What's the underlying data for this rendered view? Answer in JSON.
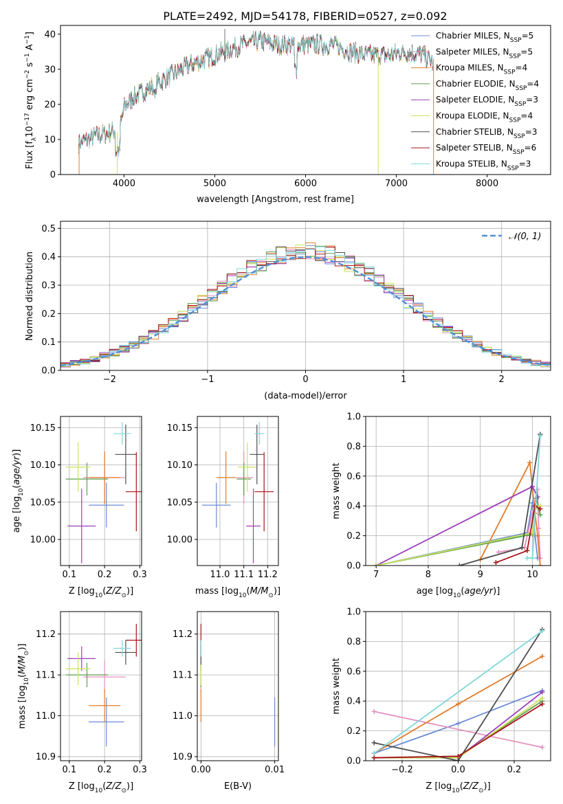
{
  "figure": {
    "title": "PLATE=2492, MJD=54178, FIBERID=0527, z=0.092"
  },
  "colors": {
    "Chabrier MILES": "#6a8ad6",
    "Salpeter MILES": "#e58fbf",
    "Kroupa MILES": "#e07b2a",
    "Chabrier ELODIE": "#5c9e4e",
    "Salpeter ELODIE": "#9b3db8",
    "Kroupa ELODIE": "#c9e35a",
    "Chabrier STELIB": "#4d4d4d",
    "Salpeter STELIB": "#a8121a",
    "Kroupa STELIB": "#7fd6da"
  },
  "chart_data": [
    {
      "id": "spectrum",
      "type": "line",
      "xlabel_main": "wavelength [Angstrom, rest frame]",
      "ylabel_main": "Flux [f",
      "xlim": [
        3300,
        8700
      ],
      "ylim": [
        0,
        42.5
      ],
      "xticks": [
        4000,
        5000,
        6000,
        7000,
        8000
      ],
      "yticks": [
        0,
        10,
        20,
        30,
        40
      ],
      "grid": false,
      "legend_position": "top-right",
      "legend": [
        {
          "model": "Chabrier MILES",
          "nssp": "5"
        },
        {
          "model": "Salpeter MILES",
          "nssp": "5"
        },
        {
          "model": "Kroupa MILES",
          "nssp": "4"
        },
        {
          "model": "Chabrier ELODIE",
          "nssp": "4"
        },
        {
          "model": "Salpeter ELODIE",
          "nssp": "3"
        },
        {
          "model": "Kroupa ELODIE",
          "nssp": "4"
        },
        {
          "model": "Chabrier STELIB",
          "nssp": "3"
        },
        {
          "model": "Salpeter STELIB",
          "nssp": "6"
        },
        {
          "model": "Kroupa STELIB",
          "nssp": "3"
        }
      ],
      "continuum": {
        "x": [
          3500,
          3700,
          3850,
          3950,
          4000,
          4100,
          4300,
          4500,
          4700,
          4900,
          5100,
          5300,
          5500,
          5700,
          5900,
          6100,
          6300,
          6500,
          6700,
          6900,
          7100,
          7300,
          7400
        ],
        "y": [
          9,
          11,
          12,
          13,
          19,
          22,
          25,
          28,
          31,
          33,
          35,
          37,
          38,
          37,
          37,
          37,
          37,
          35,
          34,
          34,
          35,
          34,
          32
        ]
      }
    },
    {
      "id": "residuals",
      "type": "step",
      "xlabel": "(data-model)/error",
      "ylabel": "Normed distribution",
      "xlim": [
        -2.5,
        2.5
      ],
      "ylim": [
        0,
        0.525
      ],
      "xticks": [
        -2,
        -1,
        0,
        1,
        2
      ],
      "yticks": [
        0.0,
        0.1,
        0.2,
        0.3,
        0.4,
        0.5
      ],
      "grid": true,
      "legend_position": "top-right",
      "reference_curve": "N(0,1)",
      "bin_width": 0.1
    },
    {
      "id": "age-vs-Z",
      "type": "errorbar",
      "xlabel": "Z [log10(Z/Z⊙)]",
      "ylabel": "age  [log10(age/yr)]",
      "xlim": [
        0.075,
        0.305
      ],
      "ylim": [
        9.965,
        10.165
      ],
      "xticks": [
        0.1,
        0.2,
        0.3
      ],
      "yticks": [
        10.0,
        10.05,
        10.1,
        10.15
      ],
      "grid": true,
      "points": [
        {
          "model": "Chabrier MILES",
          "x": 0.205,
          "xerr": 0.05,
          "y": 10.046,
          "yerr": 0.03
        },
        {
          "model": "Salpeter MILES",
          "x": 0.2,
          "xerr": 0.06,
          "y": 10.083,
          "yerr": 0.035
        },
        {
          "model": "Kroupa MILES",
          "x": 0.2,
          "xerr": 0.045,
          "y": 10.083,
          "yerr": 0.035
        },
        {
          "model": "Chabrier ELODIE",
          "x": 0.15,
          "xerr": 0.06,
          "y": 10.081,
          "yerr": 0.022
        },
        {
          "model": "Salpeter ELODIE",
          "x": 0.135,
          "xerr": 0.04,
          "y": 10.018,
          "yerr": 0.05
        },
        {
          "model": "Kroupa ELODIE",
          "x": 0.125,
          "xerr": 0.035,
          "y": 10.097,
          "yerr": 0.033
        },
        {
          "model": "Chabrier STELIB",
          "x": 0.26,
          "xerr": 0.03,
          "y": 10.114,
          "yerr": 0.04
        },
        {
          "model": "Salpeter STELIB",
          "x": 0.29,
          "xerr": 0.03,
          "y": 10.064,
          "yerr": 0.053
        },
        {
          "model": "Kroupa STELIB",
          "x": 0.25,
          "xerr": 0.025,
          "y": 10.142,
          "yerr": 0.015
        }
      ]
    },
    {
      "id": "age-vs-mass",
      "type": "errorbar",
      "xlabel": "mass [log10(M/M⊙)]",
      "ylabel": "",
      "xlim": [
        10.905,
        11.245
      ],
      "ylim": [
        9.965,
        10.165
      ],
      "xticks": [
        11.0,
        11.1,
        11.2
      ],
      "yticks": [
        10.0,
        10.05,
        10.1,
        10.15
      ],
      "grid": true,
      "points": [
        {
          "model": "Chabrier MILES",
          "x": 10.985,
          "xerr": 0.06,
          "y": 10.046,
          "yerr": 0.03
        },
        {
          "model": "Salpeter MILES",
          "x": 11.1,
          "xerr": 0.04,
          "y": 10.083,
          "yerr": 0.035
        },
        {
          "model": "Kroupa MILES",
          "x": 11.025,
          "xerr": 0.04,
          "y": 10.083,
          "yerr": 0.035
        },
        {
          "model": "Chabrier ELODIE",
          "x": 11.1,
          "xerr": 0.03,
          "y": 10.081,
          "yerr": 0.022
        },
        {
          "model": "Salpeter ELODIE",
          "x": 11.14,
          "xerr": 0.03,
          "y": 10.018,
          "yerr": 0.05
        },
        {
          "model": "Kroupa ELODIE",
          "x": 11.115,
          "xerr": 0.04,
          "y": 10.097,
          "yerr": 0.033
        },
        {
          "model": "Chabrier STELIB",
          "x": 11.155,
          "xerr": 0.03,
          "y": 10.114,
          "yerr": 0.04
        },
        {
          "model": "Salpeter STELIB",
          "x": 11.185,
          "xerr": 0.04,
          "y": 10.064,
          "yerr": 0.053
        },
        {
          "model": "Kroupa STELIB",
          "x": 11.165,
          "xerr": 0.02,
          "y": 10.142,
          "yerr": 0.015
        }
      ]
    },
    {
      "id": "weight-vs-age",
      "type": "line",
      "xlabel": "age  [log10(age/yr)]",
      "ylabel": "mass weight",
      "xlim": [
        6.8,
        10.35
      ],
      "ylim": [
        0,
        1.0
      ],
      "xticks": [
        7,
        8,
        9,
        10
      ],
      "yticks": [
        0.0,
        0.2,
        0.4,
        0.6,
        0.8,
        1.0
      ],
      "grid": true,
      "series": [
        {
          "model": "Chabrier MILES",
          "x": [
            7.0,
            9.9,
            10.0,
            10.05,
            10.1
          ],
          "y": [
            0.0,
            0.22,
            0.42,
            0.2,
            0.05
          ]
        },
        {
          "model": "Salpeter MILES",
          "x": [
            9.35,
            9.85,
            10.1,
            10.12,
            10.15
          ],
          "y": [
            0.09,
            0.12,
            0.51,
            0.25,
            0.05
          ]
        },
        {
          "model": "Kroupa MILES",
          "x": [
            9.0,
            9.95,
            10.05,
            10.1,
            10.15
          ],
          "y": [
            0.04,
            0.69,
            0.35,
            0.2,
            0.0
          ]
        },
        {
          "model": "Chabrier ELODIE",
          "x": [
            7.0,
            10.0,
            10.08,
            10.15
          ],
          "y": [
            0.0,
            0.21,
            0.45,
            0.34
          ]
        },
        {
          "model": "Salpeter ELODIE",
          "x": [
            7.0,
            10.0,
            10.1
          ],
          "y": [
            0.0,
            0.53,
            0.46
          ]
        },
        {
          "model": "Kroupa ELODIE",
          "x": [
            7.0,
            10.0,
            10.05,
            10.15
          ],
          "y": [
            0.0,
            0.22,
            0.38,
            0.4
          ]
        },
        {
          "model": "Chabrier STELIB",
          "x": [
            8.6,
            9.8,
            10.15
          ],
          "y": [
            0.0,
            0.12,
            0.88
          ]
        },
        {
          "model": "Salpeter STELIB",
          "x": [
            9.3,
            9.9,
            10.05,
            10.15
          ],
          "y": [
            0.02,
            0.1,
            0.4,
            0.38
          ]
        },
        {
          "model": "Kroupa STELIB",
          "x": [
            9.9,
            10.0,
            10.15
          ],
          "y": [
            0.05,
            0.05,
            0.87
          ]
        }
      ]
    },
    {
      "id": "mass-vs-Z",
      "type": "errorbar",
      "xlabel": "Z [log10(Z/Z⊙)]",
      "ylabel": "mass [log10(M/M⊙)]",
      "xlim": [
        0.075,
        0.305
      ],
      "ylim": [
        10.89,
        11.255
      ],
      "xticks": [
        0.1,
        0.2,
        0.3
      ],
      "yticks": [
        10.9,
        11.0,
        11.1,
        11.2
      ],
      "grid": true,
      "points": [
        {
          "model": "Chabrier MILES",
          "x": 0.205,
          "xerr": 0.05,
          "y": 10.985,
          "yerr": 0.06
        },
        {
          "model": "Salpeter MILES",
          "x": 0.2,
          "xerr": 0.06,
          "y": 11.095,
          "yerr": 0.04
        },
        {
          "model": "Kroupa MILES",
          "x": 0.2,
          "xerr": 0.045,
          "y": 11.025,
          "yerr": 0.04
        },
        {
          "model": "Chabrier ELODIE",
          "x": 0.15,
          "xerr": 0.06,
          "y": 11.1,
          "yerr": 0.03
        },
        {
          "model": "Salpeter ELODIE",
          "x": 0.135,
          "xerr": 0.04,
          "y": 11.14,
          "yerr": 0.03
        },
        {
          "model": "Kroupa ELODIE",
          "x": 0.125,
          "xerr": 0.035,
          "y": 11.115,
          "yerr": 0.04
        },
        {
          "model": "Chabrier STELIB",
          "x": 0.26,
          "xerr": 0.03,
          "y": 11.155,
          "yerr": 0.03
        },
        {
          "model": "Salpeter STELIB",
          "x": 0.29,
          "xerr": 0.03,
          "y": 11.185,
          "yerr": 0.04
        },
        {
          "model": "Kroupa STELIB",
          "x": 0.25,
          "xerr": 0.025,
          "y": 11.165,
          "yerr": 0.02
        }
      ]
    },
    {
      "id": "mass-vs-EBV",
      "type": "errorbar",
      "xlabel": "E(B-V)",
      "ylabel": "",
      "xlim": [
        -0.0005,
        0.0105
      ],
      "ylim": [
        10.89,
        11.255
      ],
      "xticks": [
        0.0,
        0.01
      ],
      "yticks": [
        10.9,
        11.0,
        11.1,
        11.2
      ],
      "grid": true,
      "points": [
        {
          "model": "Chabrier MILES",
          "x": 0.01,
          "xerr": 0.0,
          "y": 10.985,
          "yerr": 0.06
        },
        {
          "model": "Salpeter MILES",
          "x": 0.0,
          "xerr": 0.0,
          "y": 11.095,
          "yerr": 0.04
        },
        {
          "model": "Kroupa MILES",
          "x": 0.0,
          "xerr": 0.0,
          "y": 11.025,
          "yerr": 0.04
        },
        {
          "model": "Chabrier ELODIE",
          "x": 0.0,
          "xerr": 0.0,
          "y": 11.1,
          "yerr": 0.03
        },
        {
          "model": "Salpeter ELODIE",
          "x": 0.0,
          "xerr": 0.0,
          "y": 11.14,
          "yerr": 0.03
        },
        {
          "model": "Kroupa ELODIE",
          "x": 0.0,
          "xerr": 0.0,
          "y": 11.115,
          "yerr": 0.04
        },
        {
          "model": "Chabrier STELIB",
          "x": 0.0,
          "xerr": 0.0,
          "y": 11.155,
          "yerr": 0.03
        },
        {
          "model": "Salpeter STELIB",
          "x": 0.0,
          "xerr": 0.0,
          "y": 11.185,
          "yerr": 0.04
        },
        {
          "model": "Kroupa STELIB",
          "x": 0.0,
          "xerr": 0.0,
          "y": 11.165,
          "yerr": 0.02
        }
      ]
    },
    {
      "id": "weight-vs-Z",
      "type": "line",
      "xlabel": "Z [log10(Z/Z⊙)]",
      "ylabel": "mass weight",
      "xlim": [
        -0.33,
        0.33
      ],
      "ylim": [
        0,
        1.0
      ],
      "xticks": [
        -0.2,
        0.0,
        0.2
      ],
      "yticks": [
        0.0,
        0.2,
        0.4,
        0.6,
        0.8,
        1.0
      ],
      "grid": true,
      "series": [
        {
          "model": "Chabrier MILES",
          "x": [
            -0.3,
            0.0,
            0.3
          ],
          "y": [
            0.05,
            0.25,
            0.47
          ]
        },
        {
          "model": "Salpeter MILES",
          "x": [
            -0.3,
            0.3
          ],
          "y": [
            0.33,
            0.09
          ]
        },
        {
          "model": "Kroupa MILES",
          "x": [
            -0.3,
            0.0,
            0.3
          ],
          "y": [
            0.05,
            0.38,
            0.7
          ]
        },
        {
          "model": "Chabrier ELODIE",
          "x": [
            -0.3,
            0.0,
            0.3
          ],
          "y": [
            0.02,
            0.03,
            0.4
          ]
        },
        {
          "model": "Salpeter ELODIE",
          "x": [
            -0.3,
            0.0,
            0.3
          ],
          "y": [
            0.02,
            0.02,
            0.46
          ]
        },
        {
          "model": "Kroupa ELODIE",
          "x": [
            -0.3,
            0.0,
            0.3
          ],
          "y": [
            0.02,
            0.02,
            0.42
          ]
        },
        {
          "model": "Chabrier STELIB",
          "x": [
            -0.3,
            0.0,
            0.3
          ],
          "y": [
            0.12,
            0.0,
            0.88
          ]
        },
        {
          "model": "Salpeter STELIB",
          "x": [
            -0.3,
            0.0,
            0.3
          ],
          "y": [
            0.02,
            0.03,
            0.38
          ]
        },
        {
          "model": "Kroupa STELIB",
          "x": [
            -0.3,
            0.3
          ],
          "y": [
            0.05,
            0.87
          ]
        }
      ]
    }
  ]
}
